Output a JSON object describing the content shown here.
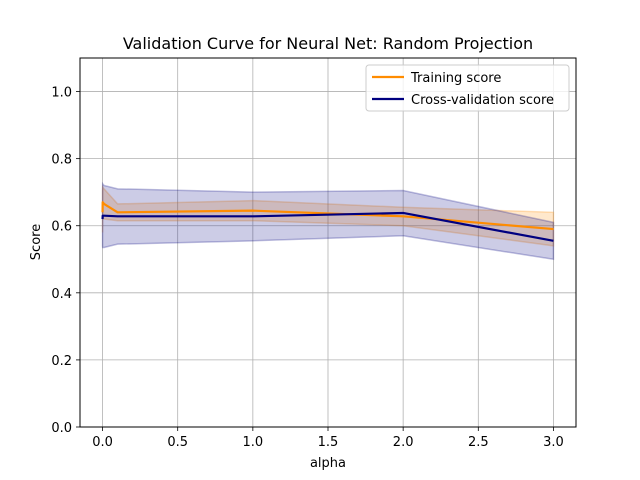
{
  "chart_data": {
    "type": "line",
    "title": "Validation Curve for Neural Net: Random Projection",
    "xlabel": "alpha",
    "ylabel": "Score",
    "xlim": [
      -0.15,
      3.15
    ],
    "ylim": [
      0.0,
      1.1
    ],
    "x_ticks": [
      0.0,
      0.5,
      1.0,
      1.5,
      2.0,
      2.5,
      3.0
    ],
    "x_tick_labels": [
      "0.0",
      "0.5",
      "1.0",
      "1.5",
      "2.0",
      "2.5",
      "3.0"
    ],
    "y_ticks": [
      0.0,
      0.2,
      0.4,
      0.6,
      0.8,
      1.0
    ],
    "y_tick_labels": [
      "0.0",
      "0.2",
      "0.4",
      "0.6",
      "0.8",
      "1.0"
    ],
    "grid": true,
    "legend_position": "top-right",
    "x": [
      0.0001,
      0.001,
      0.01,
      0.1,
      1.0,
      2.0,
      3.0
    ],
    "series": [
      {
        "name": "Training score",
        "color": "#ff8c00",
        "values": [
          0.64,
          0.67,
          0.665,
          0.64,
          0.645,
          0.628,
          0.59
        ],
        "lower": [
          0.58,
          0.625,
          0.62,
          0.615,
          0.615,
          0.6,
          0.54
        ],
        "upper": [
          0.7,
          0.715,
          0.71,
          0.665,
          0.675,
          0.655,
          0.64
        ]
      },
      {
        "name": "Cross-validation score",
        "color": "#000080",
        "values": [
          0.62,
          0.63,
          0.63,
          0.628,
          0.628,
          0.638,
          0.555
        ],
        "lower": [
          0.54,
          0.535,
          0.535,
          0.545,
          0.555,
          0.57,
          0.5
        ],
        "upper": [
          0.7,
          0.725,
          0.72,
          0.71,
          0.7,
          0.705,
          0.61
        ]
      }
    ]
  }
}
